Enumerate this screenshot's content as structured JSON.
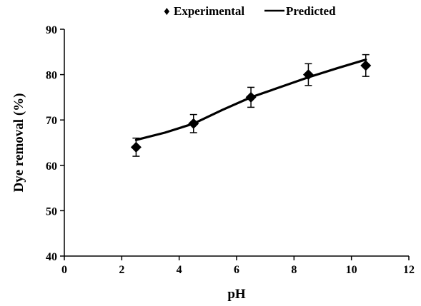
{
  "chart_data": {
    "type": "scatter",
    "title": "",
    "xlabel": "pH",
    "ylabel": "Dye removal (%)",
    "xlim": [
      0,
      12
    ],
    "ylim": [
      40,
      90
    ],
    "xticks": [
      0,
      2,
      4,
      6,
      8,
      10,
      12
    ],
    "yticks": [
      40,
      50,
      60,
      70,
      80,
      90
    ],
    "grid": false,
    "legend_position": "top-center",
    "series": [
      {
        "name": "Experimental",
        "kind": "markers-with-error-bars",
        "marker": "diamond",
        "color": "#000000",
        "x": [
          2.5,
          4.5,
          6.5,
          8.5,
          10.5
        ],
        "y": [
          64.0,
          69.2,
          75.0,
          80.0,
          82.0
        ],
        "error": [
          2.0,
          2.0,
          2.2,
          2.4,
          2.4
        ]
      },
      {
        "name": "Predicted",
        "kind": "line",
        "color": "#000000",
        "x": [
          2.5,
          3.5,
          4.5,
          5.5,
          6.5,
          7.5,
          8.5,
          9.5,
          10.5
        ],
        "y": [
          65.6,
          67.2,
          69.2,
          72.2,
          75.0,
          77.2,
          79.4,
          81.4,
          83.3
        ]
      }
    ]
  },
  "legend": {
    "experimental_label": "Experimental",
    "predicted_label": "Predicted",
    "experimental_symbol": "♦"
  }
}
